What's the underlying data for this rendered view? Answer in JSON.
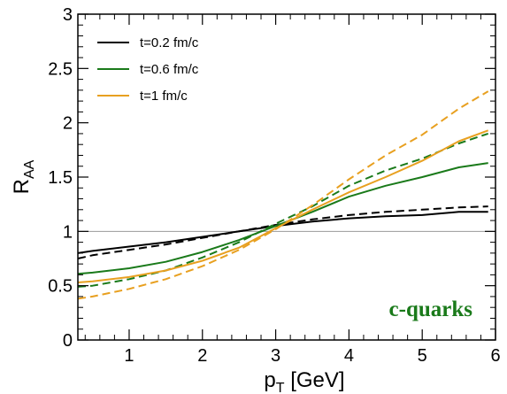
{
  "chart_data": {
    "type": "line",
    "xlabel_main": "p",
    "xlabel_sub": "T",
    "xlabel_unit": " [GeV]",
    "ylabel_main": "R",
    "ylabel_sub": "AA",
    "xlim": [
      0.3,
      6.0
    ],
    "ylim": [
      0,
      3
    ],
    "xticks": [
      1,
      2,
      3,
      4,
      5,
      6
    ],
    "xtick_labels": [
      "1",
      "2",
      "3",
      "4",
      "5",
      "6"
    ],
    "yticks": [
      0,
      0.5,
      1,
      1.5,
      2,
      2.5,
      3
    ],
    "ytick_labels": [
      "0",
      "0.5",
      "1",
      "1.5",
      "2",
      "2.5",
      "3"
    ],
    "reference_line": 1,
    "legend_position": "top-left",
    "legend": [
      {
        "label": "t=0.2 fm/c",
        "color": "#000000"
      },
      {
        "label": "t=0.6 fm/c",
        "color": "#1a7a1a"
      },
      {
        "label": "t=1 fm/c",
        "color": "#e8a020"
      }
    ],
    "annotation": {
      "text": "c-quarks",
      "color": "#1a7a1a"
    },
    "series": [
      {
        "color": "#000000",
        "style": "solid",
        "x": [
          0.3,
          0.5,
          1.0,
          1.5,
          2.0,
          2.5,
          3.0,
          3.5,
          4.0,
          4.5,
          5.0,
          5.5,
          5.9
        ],
        "y": [
          0.8,
          0.82,
          0.86,
          0.9,
          0.95,
          1.0,
          1.05,
          1.09,
          1.12,
          1.14,
          1.15,
          1.18,
          1.18
        ]
      },
      {
        "color": "#000000",
        "style": "dashed",
        "x": [
          0.3,
          0.5,
          1.0,
          1.5,
          2.0,
          2.5,
          3.0,
          3.5,
          4.0,
          4.5,
          5.0,
          5.5,
          5.9
        ],
        "y": [
          0.75,
          0.78,
          0.83,
          0.88,
          0.94,
          1.0,
          1.06,
          1.11,
          1.15,
          1.18,
          1.2,
          1.22,
          1.23
        ]
      },
      {
        "color": "#1a7a1a",
        "style": "solid",
        "x": [
          0.3,
          0.5,
          1.0,
          1.5,
          2.0,
          2.5,
          3.0,
          3.5,
          4.0,
          4.5,
          5.0,
          5.5,
          5.9
        ],
        "y": [
          0.61,
          0.62,
          0.66,
          0.72,
          0.81,
          0.92,
          1.05,
          1.18,
          1.32,
          1.42,
          1.5,
          1.59,
          1.63
        ]
      },
      {
        "color": "#1a7a1a",
        "style": "dashed",
        "x": [
          0.3,
          0.5,
          1.0,
          1.5,
          2.0,
          2.5,
          3.0,
          3.5,
          4.0,
          4.5,
          5.0,
          5.5,
          5.9
        ],
        "y": [
          0.49,
          0.5,
          0.56,
          0.64,
          0.76,
          0.9,
          1.07,
          1.23,
          1.42,
          1.56,
          1.67,
          1.81,
          1.9
        ]
      },
      {
        "color": "#e8a020",
        "style": "solid",
        "x": [
          0.3,
          0.5,
          1.0,
          1.5,
          2.0,
          2.5,
          3.0,
          3.5,
          4.0,
          4.5,
          5.0,
          5.5,
          5.9
        ],
        "y": [
          0.53,
          0.54,
          0.58,
          0.64,
          0.73,
          0.85,
          1.03,
          1.2,
          1.36,
          1.5,
          1.65,
          1.83,
          1.93
        ]
      },
      {
        "color": "#e8a020",
        "style": "dashed",
        "x": [
          0.3,
          0.5,
          1.0,
          1.5,
          2.0,
          2.5,
          3.0,
          3.5,
          4.0,
          4.5,
          5.0,
          5.5,
          5.9
        ],
        "y": [
          0.38,
          0.4,
          0.47,
          0.56,
          0.68,
          0.83,
          1.02,
          1.24,
          1.48,
          1.7,
          1.89,
          2.13,
          2.29
        ]
      }
    ]
  }
}
